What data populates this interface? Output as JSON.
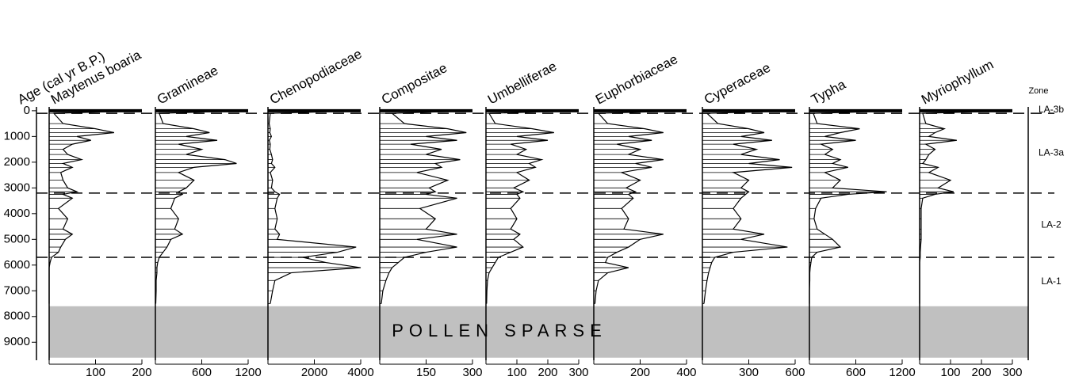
{
  "chart_data": {
    "type": "stratigraphic",
    "ylabel": "Age (cal yr B.P.)",
    "ylim": [
      -150,
      9700
    ],
    "yticks": [
      0,
      1000,
      2000,
      3000,
      4000,
      5000,
      6000,
      7000,
      8000,
      9000
    ],
    "y": [
      0,
      100,
      500,
      700,
      850,
      1000,
      1150,
      1300,
      1500,
      1700,
      1900,
      2050,
      2200,
      2400,
      2700,
      3000,
      3150,
      3250,
      3400,
      3800,
      4200,
      4600,
      4800,
      5000,
      5300,
      5500,
      5700,
      5900,
      6100,
      6300,
      6600,
      7000,
      7500
    ],
    "panels": [
      {
        "name": "Maytenus boaria",
        "xlim": [
          0,
          200
        ],
        "xticks": [
          100,
          200
        ],
        "values": [
          200,
          10,
          30,
          100,
          140,
          60,
          90,
          50,
          30,
          40,
          70,
          30,
          50,
          25,
          30,
          40,
          60,
          30,
          50,
          20,
          40,
          30,
          50,
          35,
          25,
          20,
          5,
          2,
          0,
          0,
          0,
          0,
          0
        ]
      },
      {
        "name": "Gramineae",
        "xlim": [
          0,
          1200
        ],
        "xticks": [
          600,
          1200
        ],
        "values": [
          1200,
          50,
          100,
          500,
          700,
          400,
          800,
          300,
          600,
          400,
          900,
          1050,
          500,
          300,
          500,
          400,
          300,
          350,
          250,
          200,
          300,
          250,
          350,
          200,
          150,
          100,
          50,
          30,
          20,
          20,
          10,
          10,
          5
        ]
      },
      {
        "name": "Chenopodiaceae",
        "xlim": [
          0,
          4000
        ],
        "xticks": [
          2000,
          4000
        ],
        "values": [
          4000,
          100,
          50,
          100,
          80,
          150,
          60,
          100,
          80,
          150,
          200,
          150,
          300,
          100,
          200,
          150,
          300,
          500,
          400,
          300,
          400,
          300,
          500,
          400,
          3800,
          3000,
          1500,
          2500,
          4000,
          1000,
          300,
          200,
          100
        ]
      },
      {
        "name": "Compositae",
        "xlim": [
          0,
          300
        ],
        "xticks": [
          150,
          300
        ],
        "values": [
          300,
          40,
          80,
          220,
          280,
          150,
          250,
          100,
          200,
          150,
          260,
          180,
          200,
          120,
          220,
          160,
          180,
          150,
          250,
          130,
          180,
          150,
          250,
          120,
          250,
          150,
          80,
          60,
          40,
          30,
          20,
          10,
          5
        ]
      },
      {
        "name": "Umbelliferae",
        "xlim": [
          0,
          300
        ],
        "xticks": [
          100,
          200,
          300
        ],
        "values": [
          300,
          10,
          30,
          150,
          220,
          100,
          200,
          80,
          130,
          100,
          180,
          140,
          160,
          100,
          140,
          90,
          120,
          100,
          110,
          80,
          100,
          80,
          110,
          90,
          120,
          80,
          40,
          30,
          20,
          10,
          5,
          3,
          2
        ]
      },
      {
        "name": "Euphorbiaceae",
        "xlim": [
          0,
          400
        ],
        "xticks": [
          200,
          400
        ],
        "values": [
          400,
          20,
          60,
          220,
          300,
          150,
          250,
          100,
          200,
          150,
          300,
          180,
          250,
          120,
          200,
          140,
          180,
          150,
          170,
          120,
          150,
          130,
          300,
          200,
          150,
          100,
          60,
          50,
          150,
          60,
          20,
          10,
          5
        ]
      },
      {
        "name": "Cyperaceae",
        "xlim": [
          0,
          600
        ],
        "xticks": [
          300,
          600
        ],
        "values": [
          600,
          30,
          100,
          300,
          400,
          250,
          450,
          200,
          350,
          250,
          500,
          300,
          580,
          200,
          300,
          250,
          300,
          280,
          250,
          200,
          250,
          200,
          400,
          250,
          550,
          200,
          80,
          60,
          50,
          40,
          30,
          20,
          10
        ]
      },
      {
        "name": "Typha",
        "xlim": [
          0,
          1200
        ],
        "xticks": [
          600,
          1200
        ],
        "values": [
          1200,
          50,
          100,
          650,
          400,
          200,
          600,
          150,
          300,
          200,
          400,
          300,
          500,
          200,
          400,
          300,
          1000,
          500,
          150,
          80,
          60,
          100,
          200,
          300,
          400,
          100,
          30,
          20,
          10,
          5,
          5,
          0,
          0
        ]
      },
      {
        "name": "Myriophyllum",
        "xlim": [
          0,
          300
        ],
        "xticks": [
          100,
          200,
          300
        ],
        "values": [
          300,
          10,
          20,
          80,
          50,
          30,
          120,
          20,
          50,
          30,
          20,
          10,
          60,
          30,
          100,
          60,
          110,
          50,
          10,
          5,
          5,
          5,
          5,
          5,
          3,
          2,
          2,
          0,
          0,
          0,
          0,
          0,
          0
        ]
      }
    ],
    "zone_header": "Zone",
    "zones": [
      "LA-3b",
      "LA-3a",
      "LA-2",
      "LA-1"
    ],
    "zone_boundaries": [
      100,
      3200,
      5700
    ],
    "sparse_range": [
      7600,
      9600
    ],
    "annotation": "POLLEN SPARSE",
    "color": "#000000",
    "sparse_color": "#c0c0c0"
  }
}
